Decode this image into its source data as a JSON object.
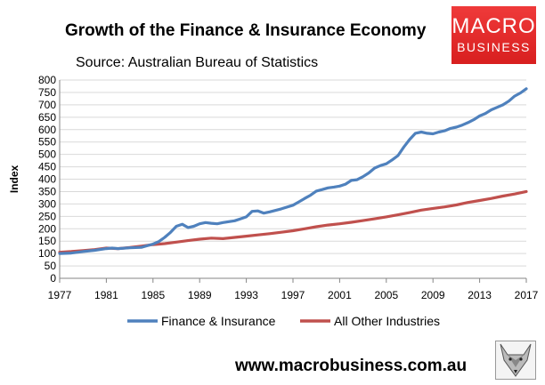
{
  "header": {
    "title": "Growth of the Finance & Insurance Economy",
    "source": "Source: Australian Bureau of Statistics"
  },
  "logo": {
    "line1": "MACRO",
    "line2": "BUSINESS",
    "bg_color": "#e02a2a"
  },
  "footer": {
    "url": "www.macrobusiness.com.au",
    "icon": "fox-icon"
  },
  "chart_data": {
    "type": "line",
    "title": "Growth of the Finance & Insurance Economy",
    "subtitle": "Source: Australian Bureau of Statistics",
    "xlabel": "",
    "ylabel": "Index",
    "xlim": [
      1977,
      2017
    ],
    "ylim": [
      0,
      800
    ],
    "x_ticks": [
      1977,
      1981,
      1985,
      1989,
      1993,
      1997,
      2001,
      2005,
      2009,
      2013,
      2017
    ],
    "y_ticks": [
      0,
      50,
      100,
      150,
      200,
      250,
      300,
      350,
      400,
      450,
      500,
      550,
      600,
      650,
      700,
      750,
      800
    ],
    "grid": true,
    "legend": "bottom",
    "series": [
      {
        "name": "Finance & Insurance",
        "color": "#4f81bd",
        "x": [
          1977,
          1978,
          1979,
          1980,
          1981,
          1981.5,
          1982,
          1983,
          1984,
          1985,
          1985.5,
          1986,
          1986.5,
          1987,
          1987.5,
          1988,
          1988.5,
          1989,
          1989.5,
          1990,
          1990.5,
          1991,
          1992,
          1992.5,
          1993,
          1993.5,
          1994,
          1994.5,
          1995,
          1996,
          1997,
          1997.5,
          1998,
          1998.5,
          1999,
          1999.5,
          2000,
          2000.5,
          2001,
          2001.5,
          2002,
          2002.5,
          2003,
          2003.5,
          2004,
          2004.5,
          2005,
          2005.5,
          2006,
          2006.5,
          2007,
          2007.5,
          2008,
          2008.5,
          2009,
          2009.5,
          2010,
          2010.5,
          2011,
          2011.5,
          2012,
          2012.5,
          2013,
          2013.5,
          2014,
          2014.5,
          2015,
          2015.5,
          2016,
          2016.5,
          2017
        ],
        "values": [
          100,
          102,
          108,
          113,
          120,
          122,
          120,
          123,
          125,
          138,
          148,
          165,
          185,
          210,
          218,
          205,
          210,
          220,
          225,
          222,
          220,
          225,
          232,
          240,
          248,
          270,
          272,
          263,
          268,
          280,
          295,
          308,
          322,
          335,
          352,
          358,
          365,
          368,
          372,
          380,
          395,
          398,
          410,
          425,
          445,
          455,
          462,
          478,
          495,
          530,
          560,
          585,
          590,
          585,
          583,
          590,
          595,
          605,
          610,
          618,
          628,
          640,
          655,
          665,
          680,
          690,
          700,
          715,
          735,
          748,
          765
        ]
      },
      {
        "name": "All Other Industries",
        "color": "#c0504d",
        "x": [
          1977,
          1978,
          1979,
          1980,
          1981,
          1982,
          1983,
          1984,
          1985,
          1986,
          1987,
          1988,
          1989,
          1990,
          1991,
          1992,
          1993,
          1994,
          1995,
          1996,
          1997,
          1998,
          1999,
          2000,
          2001,
          2002,
          2003,
          2004,
          2005,
          2006,
          2007,
          2008,
          2009,
          2010,
          2011,
          2012,
          2013,
          2014,
          2015,
          2016,
          2017
        ],
        "values": [
          105,
          108,
          112,
          116,
          122,
          120,
          124,
          130,
          136,
          140,
          146,
          152,
          158,
          162,
          160,
          165,
          170,
          175,
          180,
          186,
          192,
          200,
          208,
          215,
          220,
          226,
          233,
          240,
          248,
          256,
          265,
          275,
          282,
          288,
          296,
          306,
          314,
          322,
          332,
          340,
          350
        ]
      }
    ]
  }
}
